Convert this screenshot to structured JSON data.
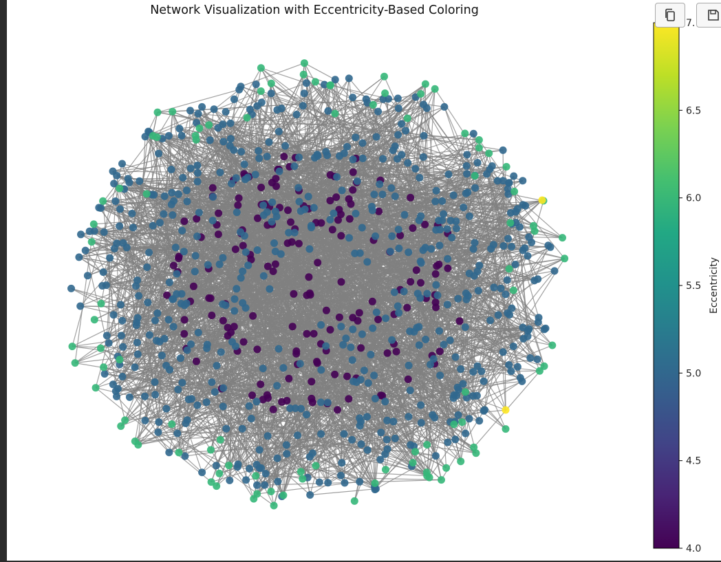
{
  "toolbar": {
    "copy_icon": "copy-icon",
    "save_icon": "floppy-disk-icon"
  },
  "chart_data": {
    "type": "network",
    "title": "Network Visualization with Eccentricity-Based Coloring",
    "colormap": "viridis",
    "edge_color": "#808080",
    "colorbar": {
      "label": "Eccentricity",
      "min": 4.0,
      "max": 7.0,
      "ticks": [
        4.0,
        4.5,
        5.0,
        5.5,
        6.0,
        6.5,
        7.0
      ],
      "tick_labels": [
        "4.0",
        "4.5",
        "5.0",
        "5.5",
        "6.0",
        "6.5",
        "7."
      ]
    },
    "node_counts_by_eccentricity": {
      "4": 170,
      "5": 560,
      "6": 95,
      "7": 2
    },
    "eccentricity_colors": {
      "4": "#440154",
      "5": "#31688e",
      "6": "#35b779",
      "7": "#fde725"
    }
  }
}
